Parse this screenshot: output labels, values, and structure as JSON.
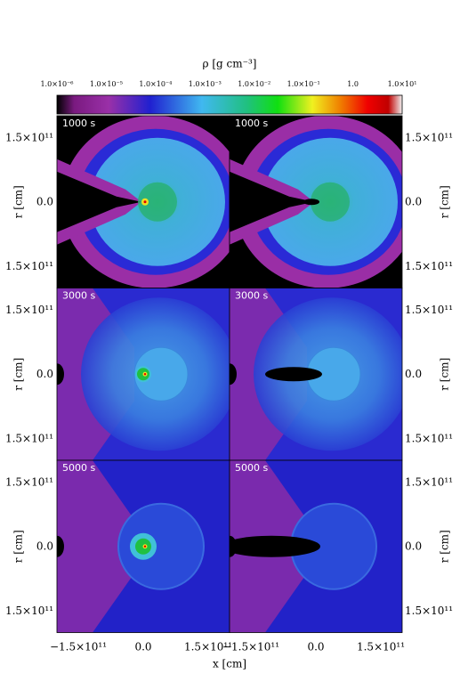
{
  "colorbar": {
    "label": "ρ [g cm⁻³]",
    "ticks": [
      "1.0×10⁻⁶",
      "1.0×10⁻⁵",
      "1.0×10⁻⁴",
      "1.0×10⁻³",
      "1.0×10⁻²",
      "1.0×10⁻¹",
      "1.0",
      "1.0×10¹"
    ]
  },
  "panels": [
    {
      "label": "1000 s"
    },
    {
      "label": "1000 s"
    },
    {
      "label": "3000 s"
    },
    {
      "label": "3000 s"
    },
    {
      "label": "5000 s"
    },
    {
      "label": "5000 s"
    }
  ],
  "y_axis": {
    "label": "r [cm]",
    "ticks": [
      "1.5×10¹¹",
      "0.0",
      "1.5×10¹¹"
    ]
  },
  "x_axis": {
    "label": "x [cm]",
    "ticks": [
      "−1.5×10¹¹",
      "0.0",
      "1.5×10¹¹"
    ]
  }
}
